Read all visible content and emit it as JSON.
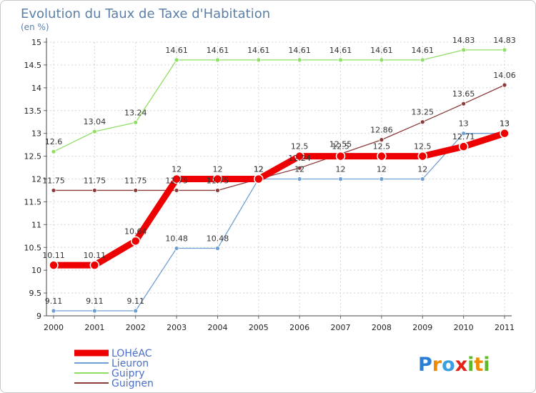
{
  "chart_data": {
    "type": "line",
    "title": "Evolution du Taux de Taxe d'Habitation",
    "subtitle": "(en %)",
    "x": [
      "2000",
      "2001",
      "2002",
      "2003",
      "2004",
      "2005",
      "2006",
      "2007",
      "2008",
      "2009",
      "2010",
      "2011"
    ],
    "ylim": [
      9,
      15
    ],
    "yticks": [
      "9",
      "9.5",
      "10",
      "10.5",
      "11",
      "11.5",
      "12",
      "12.5",
      "13",
      "13.5",
      "14",
      "14.5",
      "15"
    ],
    "ytick_values": [
      9,
      9.5,
      10,
      10.5,
      11,
      11.5,
      12,
      12.5,
      13,
      13.5,
      14,
      14.5,
      15
    ],
    "grid": true,
    "legend_position": "bottom-left",
    "series": [
      {
        "name": "LOHéAC",
        "color": "#ee0000",
        "width": 9,
        "marker": 6,
        "values": [
          10.11,
          10.11,
          10.64,
          12,
          12,
          12,
          12.5,
          12.5,
          12.5,
          12.5,
          12.71,
          13
        ],
        "labels": [
          "10.11",
          "10.11",
          "10.64",
          "12",
          "12",
          "12",
          "12.5",
          "12.5",
          "12.5",
          "12.5",
          "12.71",
          "13"
        ]
      },
      {
        "name": "Lieuron",
        "color": "#6f9fd2",
        "width": 1.3,
        "marker": 3,
        "values": [
          9.11,
          9.11,
          9.11,
          10.48,
          10.48,
          12,
          12,
          12,
          12,
          12,
          13,
          13
        ],
        "labels": [
          "9.11",
          "9.11",
          "9.11",
          "10.48",
          "10.48",
          "12",
          "12",
          "12",
          "12",
          "12",
          "13",
          "13"
        ]
      },
      {
        "name": "Guipry",
        "color": "#8fdf66",
        "width": 1.3,
        "marker": 3,
        "values": [
          12.6,
          13.04,
          13.24,
          14.61,
          14.61,
          14.61,
          14.61,
          14.61,
          14.61,
          14.61,
          14.83,
          14.83
        ],
        "labels": [
          "12.6",
          "13.04",
          "13.24",
          "14.61",
          "14.61",
          "14.61",
          "14.61",
          "14.61",
          "14.61",
          "14.61",
          "14.83",
          "14.83"
        ]
      },
      {
        "name": "Guignen",
        "color": "#8b3a3a",
        "width": 1.3,
        "marker": 3,
        "values": [
          11.75,
          11.75,
          11.75,
          11.75,
          11.75,
          12,
          12.24,
          12.55,
          12.86,
          13.25,
          13.65,
          14.06
        ],
        "labels": [
          "11.75",
          "11.75",
          "11.75",
          "11.75",
          "11.75",
          "12",
          "12.24",
          "12.55",
          "12.86",
          "13.25",
          "13.65",
          "14.06"
        ]
      }
    ]
  },
  "logo": {
    "text": "Proxiti",
    "letters": [
      {
        "ch": "P",
        "color": "#2a7fd4"
      },
      {
        "ch": "r",
        "color": "#f08a00"
      },
      {
        "ch": "o",
        "color": "#3aa0e0"
      },
      {
        "ch": "x",
        "color": "#e2231a"
      },
      {
        "ch": "i",
        "color": "#5dbb2a"
      },
      {
        "ch": "t",
        "color": "#f08a00"
      },
      {
        "ch": "i",
        "color": "#5dbb2a"
      }
    ]
  }
}
